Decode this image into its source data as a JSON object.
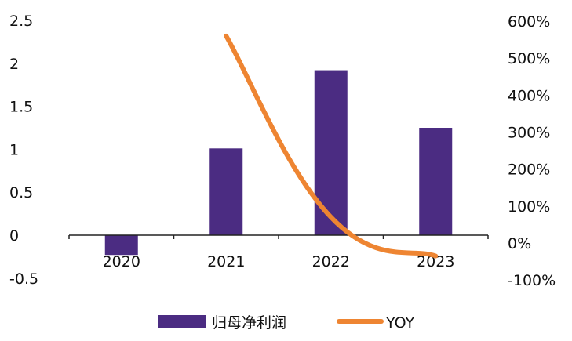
{
  "chart_data": {
    "type": "bar",
    "categories": [
      "2020",
      "2021",
      "2022",
      "2023"
    ],
    "series": [
      {
        "name": "归母净利润",
        "type": "bar",
        "axis": "left",
        "color": "#4b2c82",
        "values": [
          -0.23,
          1.01,
          1.92,
          1.25
        ]
      },
      {
        "name": "YOY",
        "type": "line",
        "axis": "right",
        "color": "#ee8532",
        "values": [
          null,
          5.6,
          0.7,
          -0.35
        ]
      }
    ],
    "left_axis": {
      "min": -0.5,
      "max": 2.5,
      "ticks": [
        -0.5,
        0,
        0.5,
        1,
        1.5,
        2,
        2.5
      ],
      "tick_labels": [
        "-0.5",
        "0",
        "0.5",
        "1",
        "1.5",
        "2",
        "2.5"
      ]
    },
    "right_axis": {
      "min": -1,
      "max": 6,
      "ticks": [
        -1,
        0,
        1,
        2,
        3,
        4,
        5,
        6
      ],
      "tick_labels": [
        "-100%",
        "0%",
        "100%",
        "200%",
        "300%",
        "400%",
        "500%",
        "600%"
      ]
    },
    "legend": {
      "position": "bottom-center",
      "entries": [
        "归母净利润",
        "YOY"
      ]
    },
    "grid": false,
    "title": "",
    "xlabel": "",
    "ylabel": ""
  }
}
